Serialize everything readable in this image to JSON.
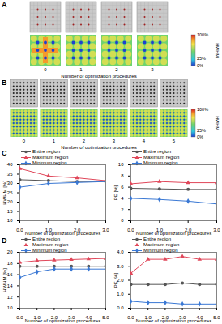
{
  "figure": {
    "panels": [
      {
        "label": "A",
        "tiles": [
          "0",
          "1",
          "2",
          "3"
        ],
        "xlabel": "Number of optimization procedures",
        "colorbar": {
          "title": "HWHM",
          "range": [
            0,
            100
          ],
          "ticks": [
            {
              "value": 100,
              "label": "100%"
            },
            {
              "value": 25,
              "label": "25%"
            },
            {
              "value": 0,
              "label": "0%"
            }
          ]
        }
      },
      {
        "label": "B",
        "tiles": [
          "0",
          "1",
          "2",
          "3",
          "4",
          "5"
        ],
        "xlabel": "Number of optimization procedures",
        "colorbar": {
          "title": "HWHM",
          "range": [
            0,
            100
          ],
          "ticks": [
            {
              "value": 100,
              "label": "100%"
            },
            {
              "value": 25,
              "label": "25%"
            },
            {
              "value": 0,
              "label": "0%"
            }
          ]
        }
      }
    ]
  },
  "chart_data": [
    {
      "type": "line",
      "panel": "C",
      "xlabel": "Number of optimization procedures",
      "ylabel": "HWHM [%]",
      "x": [
        0,
        1,
        2,
        3
      ],
      "xlim": [
        0,
        3
      ],
      "xticks": [
        0,
        1,
        2,
        3
      ],
      "ylim": [
        10,
        40
      ],
      "yticks": [
        10,
        15,
        20,
        25,
        30,
        35,
        40
      ],
      "legend": "top",
      "series": [
        {
          "name": "Entire region",
          "color": "#555555",
          "marker": "circle",
          "values": [
            32,
            31.5,
            31,
            31
          ]
        },
        {
          "name": "Maximum region",
          "color": "#e0475a",
          "marker": "triangle",
          "values": [
            38,
            34,
            33,
            31.5
          ]
        },
        {
          "name": "Minimum region",
          "color": "#3a78d4",
          "marker": "diamond",
          "values": [
            28,
            30,
            30.5,
            31
          ]
        }
      ]
    },
    {
      "type": "line",
      "xlabel": "Number of optimization procedures",
      "ylabel": "PE [%]",
      "x": [
        0,
        1,
        2,
        3
      ],
      "xlim": [
        0,
        3
      ],
      "xticks": [
        0,
        1,
        2,
        3
      ],
      "ylim": [
        0,
        10
      ],
      "yticks": [
        0,
        2,
        4,
        6,
        8,
        10
      ],
      "legend": "top",
      "series": [
        {
          "name": "Entire region",
          "color": "#555555",
          "marker": "circle",
          "values": [
            5.8,
            5.7,
            5.6,
            5.6
          ]
        },
        {
          "name": "Maximum region",
          "color": "#e0475a",
          "marker": "triangle",
          "values": [
            6.6,
            7,
            6.8,
            6.8
          ]
        },
        {
          "name": "Minimum region",
          "color": "#3a78d4",
          "marker": "diamond",
          "values": [
            4,
            3.8,
            3.5,
            3
          ]
        }
      ]
    },
    {
      "type": "line",
      "panel": "D",
      "xlabel": "Number of optimization procedures",
      "ylabel": "HWHM [%]",
      "x": [
        0,
        1,
        2,
        3,
        4,
        5
      ],
      "xlim": [
        0,
        5
      ],
      "xticks": [
        0,
        1,
        2,
        3,
        4,
        5
      ],
      "ylim": [
        10,
        20
      ],
      "yticks": [
        10,
        12,
        14,
        16,
        18,
        20
      ],
      "legend": "top",
      "series": [
        {
          "name": "Entire region",
          "color": "#555555",
          "marker": "circle",
          "values": [
            17.5,
            17.5,
            17.5,
            17.5,
            17.5,
            17.5
          ]
        },
        {
          "name": "Maximum region",
          "color": "#e0475a",
          "marker": "triangle",
          "values": [
            18.2,
            18.5,
            18.6,
            18.7,
            18.8,
            18.9
          ]
        },
        {
          "name": "Minimum region",
          "color": "#3a78d4",
          "marker": "diamond",
          "values": [
            15.5,
            16.5,
            17,
            17,
            17,
            17
          ]
        }
      ]
    },
    {
      "type": "line",
      "xlabel": "Number of optimization procedures",
      "ylabel": "PE [%]",
      "x": [
        0,
        1,
        2,
        3,
        4,
        5
      ],
      "xlim": [
        0,
        5
      ],
      "xticks": [
        0,
        1,
        2,
        3,
        4,
        5
      ],
      "ylim": [
        0,
        4
      ],
      "yticks": [
        0,
        1,
        2,
        3,
        4
      ],
      "legend": "top",
      "series": [
        {
          "name": "Entire region",
          "color": "#555555",
          "marker": "circle",
          "values": [
            1.7,
            1.7,
            1.7,
            1.8,
            1.7,
            1.7
          ]
        },
        {
          "name": "Maximum region",
          "color": "#e0475a",
          "marker": "triangle",
          "values": [
            2.5,
            3.5,
            3.5,
            3.7,
            3.5,
            3.5
          ]
        },
        {
          "name": "Minimum region",
          "color": "#3a78d4",
          "marker": "diamond",
          "values": [
            0.5,
            0.4,
            0.4,
            0.3,
            0.3,
            0.3
          ]
        }
      ]
    }
  ]
}
